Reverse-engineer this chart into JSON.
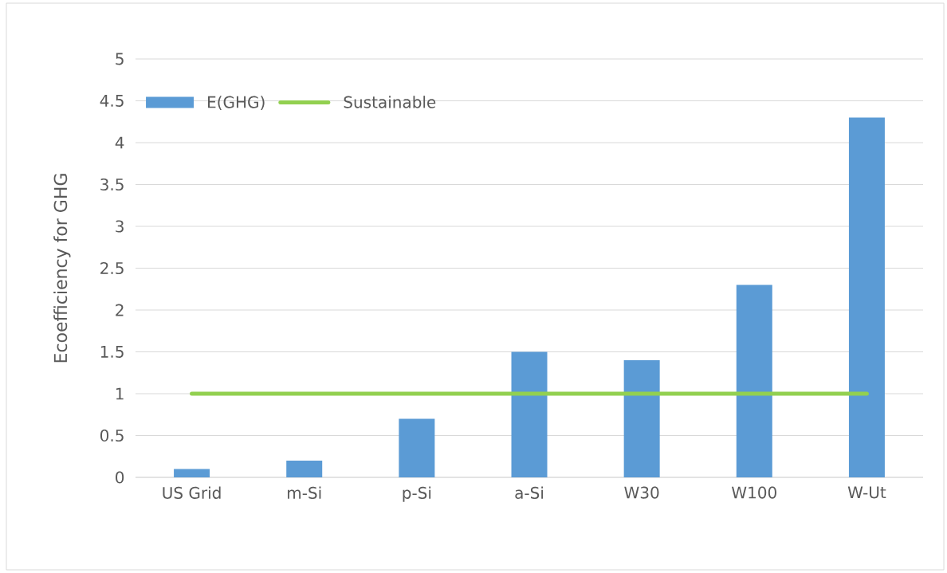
{
  "chart_data": {
    "type": "bar",
    "ylabel": "Ecoefficiency for GHG",
    "categories": [
      "US Grid",
      "m-Si",
      "p-Si",
      "a-Si",
      "W30",
      "W100",
      "W-Ut"
    ],
    "series": [
      {
        "name": "E(GHG)",
        "color": "#5b9bd5",
        "values": [
          0.1,
          0.2,
          0.7,
          1.5,
          1.4,
          2.3,
          4.3
        ]
      },
      {
        "name": "Sustainable",
        "type": "line",
        "color": "#92d050",
        "values": [
          1,
          1,
          1,
          1,
          1,
          1,
          1
        ]
      }
    ],
    "ylim": [
      0,
      5
    ],
    "yticks": [
      0,
      0.5,
      1,
      1.5,
      2,
      2.5,
      3,
      3.5,
      4,
      4.5,
      5
    ],
    "grid": "y",
    "legend": "top left"
  }
}
